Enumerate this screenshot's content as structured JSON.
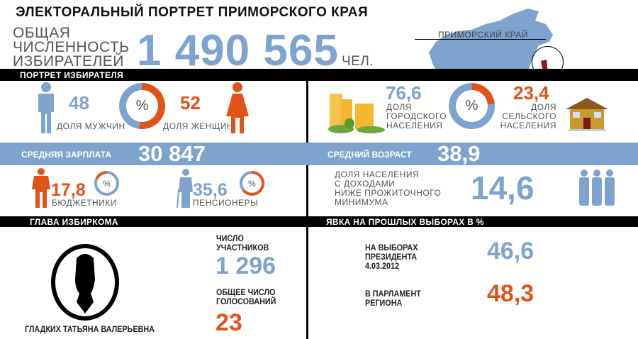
{
  "title": "ЭЛЕКТОРАЛЬНЫЙ ПОРТРЕТ ПРИМОРСКОГО КРАЯ",
  "voters": {
    "label_lines": [
      "ОБЩАЯ",
      "ЧИСЛЕННОСТЬ",
      "ИЗБИРАТЕЛЕЙ"
    ],
    "value": "1 490 565",
    "unit": "ЧЕЛ."
  },
  "map": {
    "label": "ПРИМОРСКИЙ КРАЙ"
  },
  "sections": {
    "portrait": "ПОРТРЕТ ИЗБИРАТЕЛЯ",
    "head": "ГЛАВА ИЗБИРКОМА",
    "turnout": "ЯВКА НА ПРОШЛЫХ ВЫБОРАХ В %"
  },
  "gender": {
    "men": "48",
    "men_label": "ДОЛЯ МУЖЧИН",
    "women": "52",
    "women_label": "ДОЛЯ ЖЕНЩИН",
    "symbol": "%",
    "men_pct": 48
  },
  "urban": {
    "urban": "76,6",
    "urban_label": [
      "ДОЛЯ",
      "ГОРОДСКОГО",
      "НАСЕЛЕНИЯ"
    ],
    "rural": "23,4",
    "rural_label": [
      "ДОЛЯ",
      "СЕЛЬСКОГО",
      "НАСЕЛЕНИЯ"
    ],
    "symbol": "%",
    "urban_pct": 76.6
  },
  "salary": {
    "label": "СРЕДНЯЯ ЗАРПЛАТА",
    "value": "30 847"
  },
  "age": {
    "label": "СРЕДНИЙ ВОЗРАСТ",
    "value": "38,9"
  },
  "public_sector": {
    "value": "17,8",
    "label": "БЮДЖЕТНИКИ",
    "symbol": "%",
    "pct": 17.8
  },
  "pensioners": {
    "value": "35,6",
    "label": "ПЕНСИОНЕРЫ",
    "symbol": "%",
    "pct": 35.6
  },
  "poverty": {
    "label_lines": [
      "ДОЛЯ НАСЕЛЕНИЯ",
      "С ДОХОДАМИ",
      "НИЖЕ ПРОЖИТОЧНОГО",
      "МИНИМУМА"
    ],
    "value": "14,6"
  },
  "commission": {
    "name": "ГЛАДКИХ ТАТЬЯНА ВАЛЕРЬЕВНА",
    "participants_label": [
      "ЧИСЛО",
      "УЧАСТНИКОВ"
    ],
    "participants": "1 296",
    "votes_label": [
      "ОБЩЕЕ ЧИСЛО",
      "ГОЛОСОВАНИЙ"
    ],
    "votes": "23"
  },
  "turnout": {
    "president_label": [
      "НА ВЫБОРАХ",
      "ПРЕЗИДЕНТА",
      "4.03.2012"
    ],
    "president": "46,6",
    "parliament_label": [
      "В ПАРЛАМЕНТ",
      "РЕГИОНА"
    ],
    "parliament": "48,3"
  },
  "colors": {
    "blue": "#7fa3cf",
    "orange": "#e0541c",
    "black": "#000000"
  }
}
